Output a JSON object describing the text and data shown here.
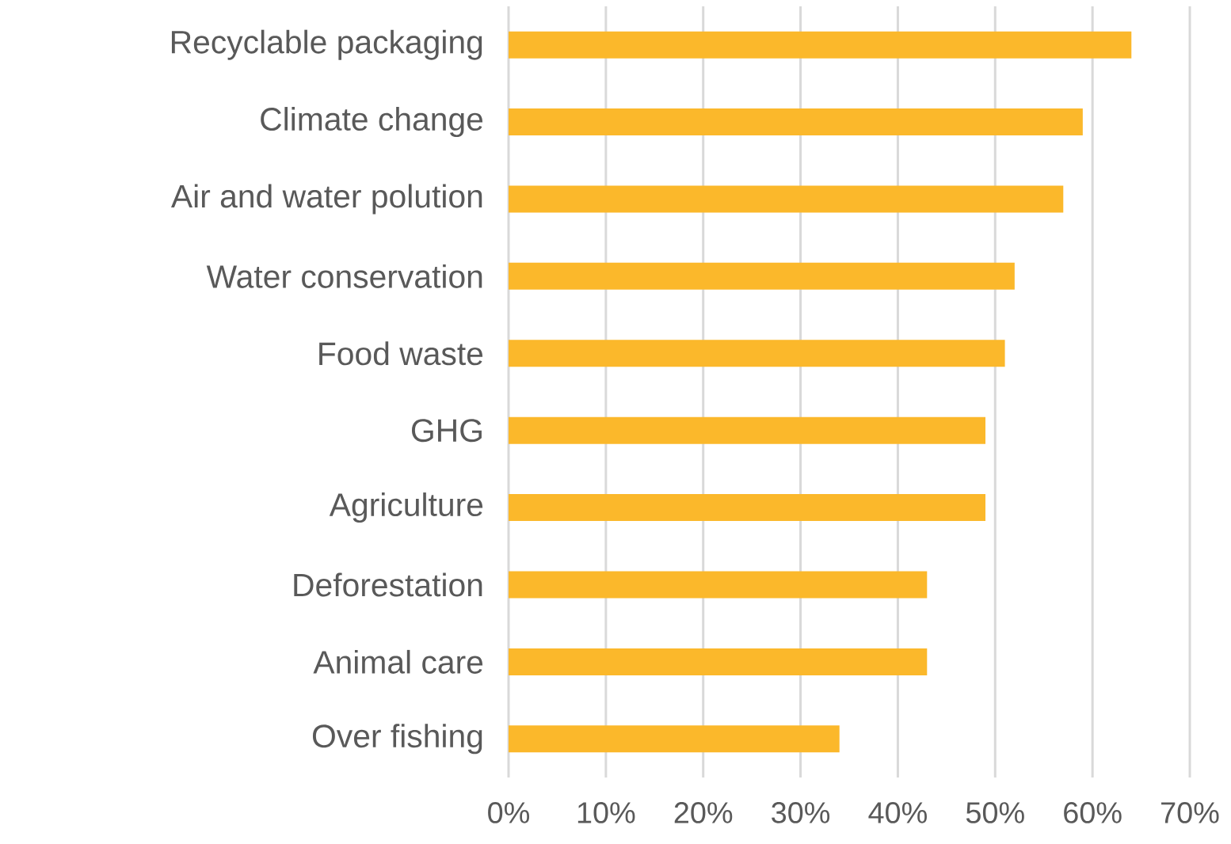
{
  "chart_data": {
    "type": "bar",
    "orientation": "horizontal",
    "categories": [
      "Recyclable packaging",
      "Climate change",
      "Air and water polution",
      "Water conservation",
      "Food waste",
      "GHG",
      "Agriculture",
      "Deforestation",
      "Animal care",
      "Over fishing"
    ],
    "values": [
      64,
      59,
      57,
      52,
      51,
      49,
      49,
      43,
      43,
      34
    ],
    "color": "#fbb82b",
    "xlim": [
      0,
      70
    ],
    "xticks": [
      {
        "value": 0,
        "label": "0%"
      },
      {
        "value": 10,
        "label": "10%"
      },
      {
        "value": 20,
        "label": "20%"
      },
      {
        "value": 30,
        "label": "30%"
      },
      {
        "value": 40,
        "label": "40%"
      },
      {
        "value": 50,
        "label": "50%"
      },
      {
        "value": 60,
        "label": "60%"
      },
      {
        "value": 70,
        "label": "70%"
      }
    ],
    "grid": "x"
  }
}
